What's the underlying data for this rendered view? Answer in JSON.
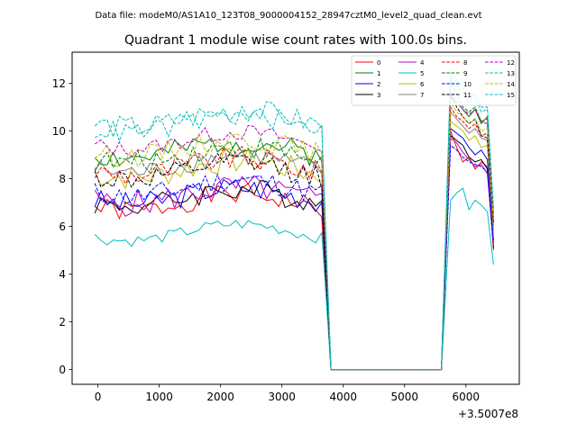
{
  "chart_data": {
    "type": "line",
    "suptitle": "Data file: modeM0/AS1A10_123T08_9000004152_28947cztM0_level2_quad_clean.evt",
    "title": "Quadrant 1 module wise count rates with 100.0s bins.",
    "xlabel": "",
    "ylabel": "",
    "x_offset_label": "+3.5007e8",
    "xlim": [
      -420,
      6870
    ],
    "ylim": [
      -0.62,
      13.3
    ],
    "x_ticks": [
      0,
      1000,
      2000,
      3000,
      4000,
      5000,
      6000
    ],
    "x_tick_labels": [
      "0",
      "1000",
      "2000",
      "3000",
      "4000",
      "5000",
      "6000"
    ],
    "y_ticks": [
      0,
      2,
      4,
      6,
      8,
      10,
      12
    ],
    "y_tick_labels": [
      "0",
      "2",
      "4",
      "6",
      "8",
      "10",
      "12"
    ],
    "legend_location": "upper right",
    "legend_columns": 4,
    "gap": {
      "from": 3800,
      "to": 5600
    },
    "segment1": {
      "start": -50,
      "end": 3650,
      "step": 100
    },
    "segment2": {
      "start": 5750,
      "end": 6550,
      "step": 100
    },
    "series": [
      {
        "name": "0",
        "color": "#ff0000",
        "dash": "solid",
        "base": 7.0,
        "amp": 0.45,
        "seed": 1,
        "seg2": [
          10.0,
          9.3,
          8.7,
          8.9,
          8.4,
          8.7,
          8.5,
          5.0
        ]
      },
      {
        "name": "1",
        "color": "#008000",
        "dash": "solid",
        "base": 9.2,
        "amp": 0.5,
        "seed": 2,
        "seg2": [
          11.4,
          11.2,
          10.9,
          10.6,
          10.9,
          10.3,
          10.6,
          6.2
        ]
      },
      {
        "name": "2",
        "color": "#0000ff",
        "dash": "solid",
        "base": 7.3,
        "amp": 0.5,
        "seed": 3,
        "seg2": [
          10.1,
          9.9,
          9.7,
          9.3,
          9.0,
          9.2,
          8.8,
          5.4
        ]
      },
      {
        "name": "3",
        "color": "#000000",
        "dash": "solid",
        "base": 7.2,
        "amp": 0.5,
        "seed": 4,
        "seg2": [
          9.8,
          9.6,
          9.4,
          8.9,
          8.7,
          8.8,
          8.4,
          5.1
        ]
      },
      {
        "name": "4",
        "color": "#bf00bf",
        "dash": "solid",
        "base": 7.3,
        "amp": 0.55,
        "seed": 5,
        "seg2": [
          9.7,
          9.5,
          9.1,
          8.8,
          8.5,
          8.6,
          8.2,
          5.2
        ]
      },
      {
        "name": "5",
        "color": "#00bfbf",
        "dash": "solid",
        "base": 5.75,
        "amp": 0.25,
        "seed": 6,
        "seg2": [
          7.1,
          7.4,
          7.6,
          6.7,
          7.1,
          6.9,
          6.6,
          4.4
        ]
      },
      {
        "name": "6",
        "color": "#bfbf00",
        "dash": "solid",
        "base": 8.4,
        "amp": 0.55,
        "seed": 7,
        "seg2": [
          10.4,
          10.2,
          10.0,
          9.6,
          9.8,
          9.3,
          9.4,
          5.8
        ]
      },
      {
        "name": "7",
        "color": "#808080",
        "dash": "solid",
        "base": 8.6,
        "amp": 0.45,
        "seed": 8,
        "seg2": [
          10.8,
          10.5,
          10.2,
          9.9,
          10.1,
          9.7,
          9.6,
          6.0
        ]
      },
      {
        "name": "8",
        "color": "#ff0000",
        "dash": "dashed",
        "base": 8.5,
        "amp": 0.5,
        "seed": 9,
        "seg2": [
          11.0,
          10.6,
          10.4,
          10.1,
          10.3,
          9.8,
          9.9,
          6.1
        ]
      },
      {
        "name": "9",
        "color": "#008000",
        "dash": "dashed",
        "base": 9.0,
        "amp": 0.5,
        "seed": 10,
        "seg2": [
          12.1,
          11.5,
          11.0,
          10.8,
          11.0,
          10.4,
          10.5,
          6.4
        ]
      },
      {
        "name": "10",
        "color": "#0000ff",
        "dash": "dashed",
        "base": 7.6,
        "amp": 0.5,
        "seed": 11,
        "seg2": [
          9.4,
          9.2,
          8.9,
          8.7,
          8.6,
          8.5,
          8.3,
          5.3
        ]
      },
      {
        "name": "11",
        "color": "#000000",
        "dash": "dashed",
        "base": 8.3,
        "amp": 0.5,
        "seed": 12,
        "seg2": [
          11.5,
          11.0,
          10.6,
          10.3,
          10.5,
          9.8,
          9.7,
          6.2
        ]
      },
      {
        "name": "12",
        "color": "#bf00bf",
        "dash": "dashed",
        "base": 9.6,
        "amp": 0.35,
        "seed": 13,
        "seg2": [
          11.6,
          11.2,
          10.9,
          10.7,
          10.9,
          10.4,
          10.3,
          6.5
        ]
      },
      {
        "name": "13",
        "color": "#00bfbf",
        "dash": "dashed",
        "base": 10.5,
        "amp": 0.5,
        "seed": 14,
        "seg2": [
          12.5,
          12.1,
          11.8,
          11.3,
          11.6,
          11.0,
          11.0,
          6.8
        ]
      },
      {
        "name": "14",
        "color": "#bfbf00",
        "dash": "dashed",
        "base": 9.3,
        "amp": 0.45,
        "seed": 15,
        "seg2": [
          11.2,
          10.8,
          10.6,
          10.3,
          10.5,
          10.0,
          10.1,
          6.3
        ]
      },
      {
        "name": "15",
        "color": "#00bfbf",
        "dash": "dashed",
        "base": 10.3,
        "amp": 0.45,
        "seed": 16,
        "seg2": [
          12.3,
          11.9,
          11.6,
          11.2,
          11.4,
          10.8,
          10.9,
          6.7
        ]
      }
    ]
  }
}
